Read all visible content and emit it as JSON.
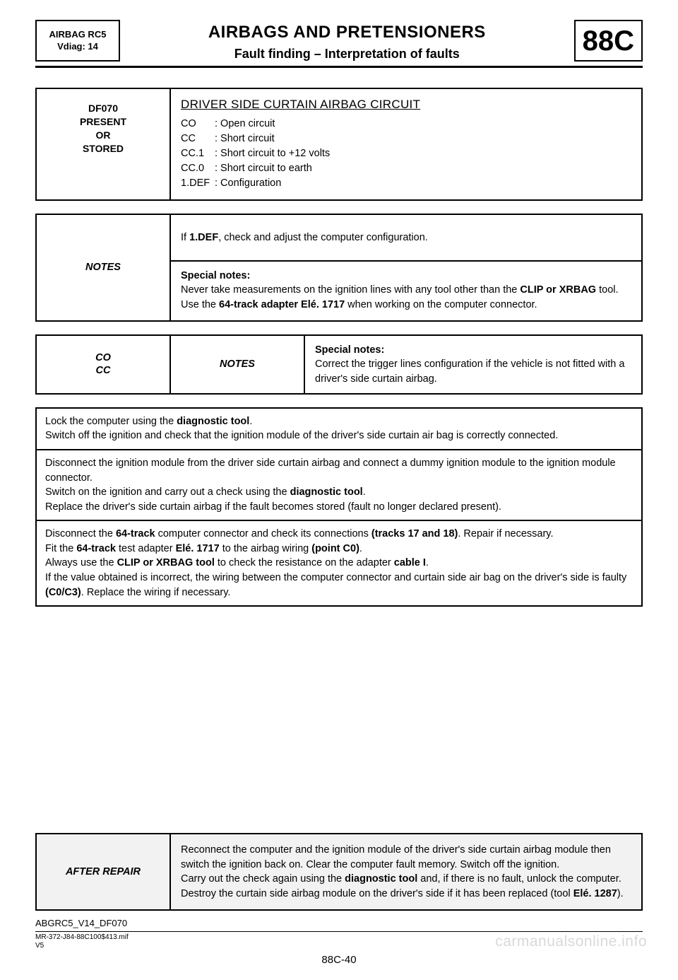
{
  "header": {
    "left_line1": "AIRBAG RC5",
    "left_line2": "Vdiag: 14",
    "title": "AIRBAGS AND PRETENSIONERS",
    "subtitle": "Fault finding – Interpretation of faults",
    "code": "88C"
  },
  "fault": {
    "id_line1": "DF070",
    "id_line2": "PRESENT",
    "id_line3": "OR",
    "id_line4": "STORED",
    "title": "DRIVER SIDE CURTAIN AIRBAG CIRCUIT",
    "defs": [
      {
        "code": "CO",
        "text": ": Open circuit"
      },
      {
        "code": "CC",
        "text": ": Short circuit"
      },
      {
        "code": "CC.1",
        "text": ": Short circuit to +12 volts"
      },
      {
        "code": "CC.0",
        "text": ": Short circuit to earth"
      },
      {
        "code": "1.DEF",
        "text": ": Configuration"
      }
    ]
  },
  "notes": {
    "label": "NOTES",
    "row1_pre": "If ",
    "row1_bold": "1.DEF",
    "row1_post": ", check and adjust the computer configuration.",
    "row2_label": "Special notes:",
    "row2_l1_pre": "Never take measurements on the ignition lines with any tool other than the ",
    "row2_l1_bold": "CLIP or XRBAG",
    "row2_l1_post": " tool.",
    "row2_l2_pre": "Use the ",
    "row2_l2_bold": "64-track adapter Elé. 1717",
    "row2_l2_post": " when working on the computer connector."
  },
  "cocc": {
    "col1_l1": "CO",
    "col1_l2": "CC",
    "col2": "NOTES",
    "col3_label": "Special notes:",
    "col3_text": "Correct the trigger lines configuration if the vehicle is not fitted with a driver's side curtain airbag."
  },
  "proc": {
    "c1_l1_pre": "Lock the computer using the ",
    "c1_l1_bold": "diagnostic tool",
    "c1_l1_post": ".",
    "c1_l2": "Switch off the ignition and check that the ignition module of the driver's side curtain air bag is correctly connected.",
    "c2_l1": "Disconnect the ignition module from the driver side curtain airbag and connect a dummy ignition module to the ignition module connector.",
    "c2_l2_pre": "Switch on the ignition and carry out a check using the ",
    "c2_l2_bold": "diagnostic tool",
    "c2_l2_post": ".",
    "c2_l3": "Replace the driver's side curtain airbag if the fault becomes stored (fault no longer declared present).",
    "c3_l1_a": "Disconnect the ",
    "c3_l1_b": "64-track",
    "c3_l1_c": " computer connector and check its connections ",
    "c3_l1_d": "(tracks 17 and 18)",
    "c3_l1_e": ". Repair if necessary.",
    "c3_l2_a": "Fit the ",
    "c3_l2_b": "64-track",
    "c3_l2_c": " test adapter ",
    "c3_l2_d": "Elé. 1717",
    "c3_l2_e": " to the airbag wiring ",
    "c3_l2_f": "(point C0)",
    "c3_l2_g": ".",
    "c3_l3_a": "Always use the ",
    "c3_l3_b": "CLIP or XRBAG tool",
    "c3_l3_c": " to check the resistance on the adapter ",
    "c3_l3_d": "cable I",
    "c3_l3_e": ".",
    "c3_l4_a": "If the value obtained is incorrect, the wiring between the computer connector and curtain side air bag on the driver's side is faulty ",
    "c3_l4_b": "(C0/C3)",
    "c3_l4_c": ". Replace the wiring if necessary."
  },
  "after": {
    "label": "AFTER REPAIR",
    "l1": "Reconnect the computer and the ignition module of the driver's side curtain airbag module then switch the ignition back on. Clear the computer fault memory. Switch off the ignition.",
    "l2_a": "Carry out the check again using the ",
    "l2_b": "diagnostic tool",
    "l2_c": " and, if there is no fault, unlock the computer. Destroy the curtain side airbag module on the driver's side if it has been replaced (tool ",
    "l2_d": "Elé. 1287",
    "l2_e": ")."
  },
  "footer": {
    "code": "ABGRC5_V14_DF070",
    "small1": "MR-372-J84-88C100$413.mif",
    "small2": "V5",
    "pagenum": "88C-40"
  },
  "watermark": "carmanualsonline.info"
}
